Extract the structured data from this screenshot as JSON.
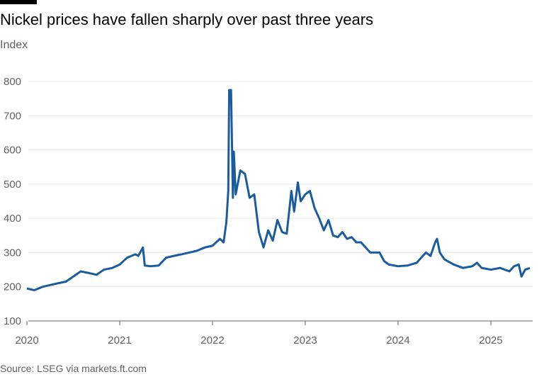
{
  "chart_data": {
    "type": "line",
    "title": "Nickel prices have fallen sharply over past three years",
    "subtitle": "Index",
    "source": "Source: LSEG via markets.ft.com",
    "x": [
      2020.0,
      2020.08,
      2020.17,
      2020.25,
      2020.33,
      2020.42,
      2020.5,
      2020.58,
      2020.67,
      2020.75,
      2020.83,
      2020.92,
      2021.0,
      2021.08,
      2021.17,
      2021.2,
      2021.25,
      2021.27,
      2021.33,
      2021.42,
      2021.5,
      2021.58,
      2021.67,
      2021.75,
      2021.83,
      2021.92,
      2022.0,
      2022.08,
      2022.12,
      2022.15,
      2022.17,
      2022.18,
      2022.2,
      2022.22,
      2022.23,
      2022.25,
      2022.3,
      2022.35,
      2022.4,
      2022.45,
      2022.5,
      2022.55,
      2022.6,
      2022.65,
      2022.7,
      2022.75,
      2022.8,
      2022.85,
      2022.88,
      2022.92,
      2022.95,
      2023.0,
      2023.05,
      2023.1,
      2023.15,
      2023.2,
      2023.25,
      2023.3,
      2023.35,
      2023.4,
      2023.45,
      2023.5,
      2023.55,
      2023.6,
      2023.7,
      2023.8,
      2023.85,
      2023.9,
      2024.0,
      2024.1,
      2024.2,
      2024.3,
      2024.35,
      2024.4,
      2024.42,
      2024.45,
      2024.5,
      2024.6,
      2024.7,
      2024.8,
      2024.85,
      2024.9,
      2025.0,
      2025.1,
      2025.2,
      2025.25,
      2025.3,
      2025.33,
      2025.37,
      2025.42
    ],
    "series": [
      {
        "name": "Nickel",
        "color": "#1a5c9e",
        "values": [
          195,
          190,
          200,
          205,
          210,
          215,
          230,
          245,
          240,
          235,
          250,
          255,
          265,
          285,
          295,
          290,
          315,
          262,
          260,
          262,
          285,
          290,
          295,
          300,
          305,
          315,
          320,
          340,
          330,
          390,
          480,
          775,
          775,
          460,
          595,
          470,
          540,
          530,
          460,
          470,
          360,
          315,
          365,
          335,
          395,
          360,
          355,
          480,
          420,
          505,
          450,
          470,
          480,
          430,
          400,
          365,
          395,
          350,
          345,
          360,
          340,
          345,
          330,
          330,
          300,
          300,
          275,
          265,
          260,
          262,
          270,
          300,
          290,
          330,
          340,
          300,
          280,
          265,
          255,
          260,
          270,
          255,
          250,
          255,
          245,
          260,
          265,
          230,
          250,
          255
        ]
      }
    ],
    "xlim": [
      2020,
      2025.42
    ],
    "xticks": [
      2020,
      2021,
      2022,
      2023,
      2024,
      2025
    ],
    "ylim": [
      100,
      800
    ],
    "yticks": [
      100,
      200,
      300,
      400,
      500,
      600,
      700,
      800
    ],
    "grid": true
  }
}
